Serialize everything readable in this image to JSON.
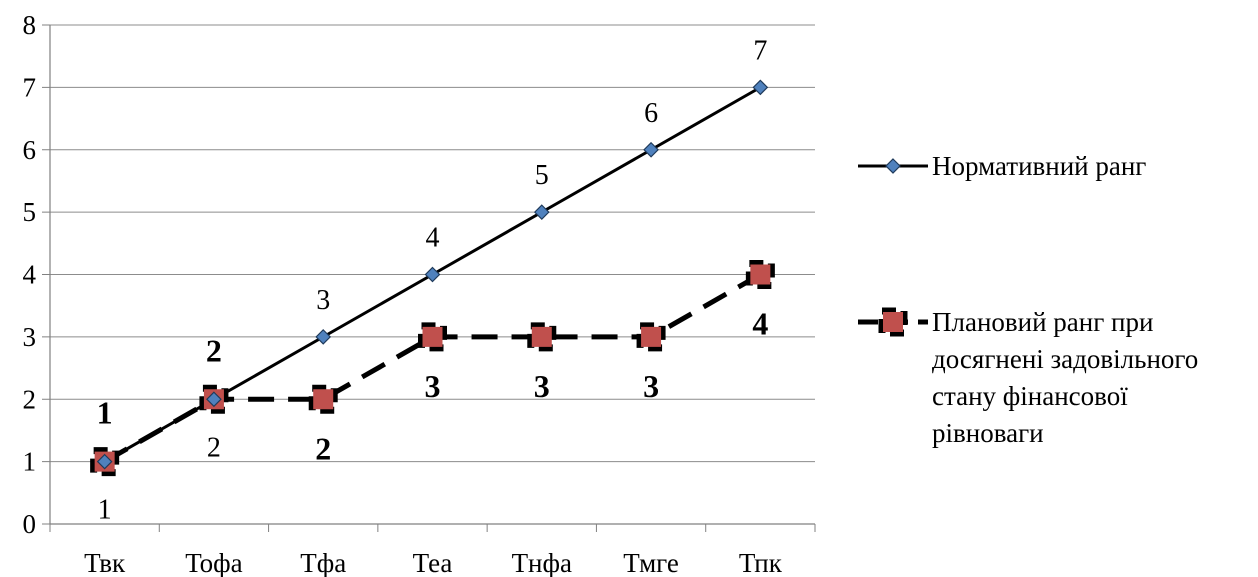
{
  "chart_data": {
    "type": "line",
    "categories": [
      "Твк",
      "Тофа",
      "Тфа",
      "Теа",
      "Тнфа",
      "Тмге",
      "Тпк"
    ],
    "ylim": [
      0,
      8
    ],
    "yticks": [
      "0",
      "1",
      "2",
      "3",
      "4",
      "5",
      "6",
      "7",
      "8"
    ],
    "grid": true,
    "legend_position": "right",
    "series": [
      {
        "name": "Нормативний ранг",
        "values": [
          1,
          2,
          3,
          4,
          5,
          6,
          7
        ],
        "data_labels": [
          "1",
          "2",
          "3",
          "4",
          "5",
          "6",
          "7"
        ],
        "color": "#000000",
        "marker": "diamond",
        "marker_color": "#4f81bd",
        "line_style": "solid"
      },
      {
        "name": "Плановий ранг при досягнені задовільного стану фінансової рівноваги",
        "legend_lines": [
          "Плановий ранг при",
          "досягнені задовільного",
          "стану фінансової",
          "рівноваги"
        ],
        "values": [
          1,
          2,
          2,
          3,
          3,
          3,
          4
        ],
        "data_labels": [
          "1",
          "2",
          "2",
          "3",
          "3",
          "3",
          "4"
        ],
        "color": "#000000",
        "marker": "square",
        "marker_color": "#c0504d",
        "line_style": "dashed"
      }
    ]
  }
}
